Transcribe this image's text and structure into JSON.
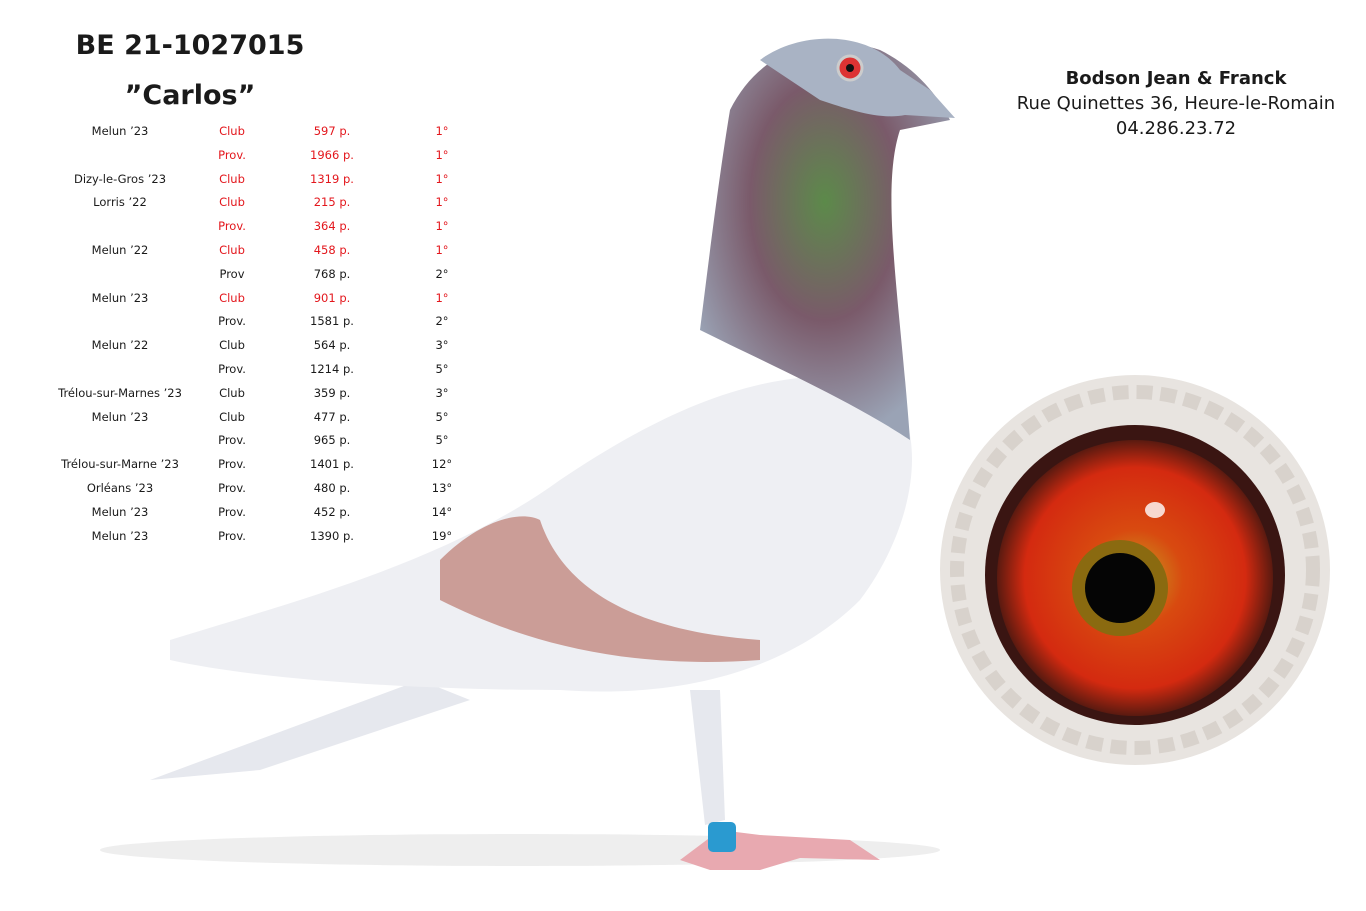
{
  "header": {
    "ring": "BE 21-1027015",
    "name": "”Carlos”"
  },
  "owner": {
    "name": "Bodson Jean & Franck",
    "address": "Rue Quinettes 36, Heure-le-Romain",
    "phone": "04.286.23.72"
  },
  "results": {
    "rows": [
      {
        "race": "Melun ’23",
        "level": "Club",
        "points": "597 p.",
        "place": "1°",
        "color": "#e3161c"
      },
      {
        "race": null,
        "level": "Prov.",
        "points": "1966 p.",
        "place": "1°",
        "color": "#e3161c"
      },
      {
        "race": "Dizy-le-Gros ’23",
        "level": "Club",
        "points": "1319 p.",
        "place": "1°",
        "color": "#e3161c"
      },
      {
        "race": "Lorris ’22",
        "level": "Club",
        "points": "215 p.",
        "place": "1°",
        "color": "#e3161c"
      },
      {
        "race": null,
        "level": "Prov.",
        "points": "364 p.",
        "place": "1°",
        "color": "#e3161c"
      },
      {
        "race": "Melun ’22",
        "level": "Club",
        "points": "458 p.",
        "place": "1°",
        "color": "#e3161c"
      },
      {
        "race": null,
        "level": "Prov",
        "points": "768 p.",
        "place": "2°",
        "color": "#1a1a1a"
      },
      {
        "race": "Melun ’23",
        "level": "Club",
        "points": "901 p.",
        "place": "1°",
        "color": "#e3161c"
      },
      {
        "race": null,
        "level": "Prov.",
        "points": "1581 p.",
        "place": "2°",
        "color": "#1a1a1a"
      },
      {
        "race": "Melun ’22",
        "level": "Club",
        "points": "564 p.",
        "place": "3°",
        "color": "#1a1a1a"
      },
      {
        "race": null,
        "level": "Prov.",
        "points": "1214 p.",
        "place": "5°",
        "color": "#1a1a1a"
      },
      {
        "race": "Trélou-sur-Marnes ’23",
        "level": "Club",
        "points": "359 p.",
        "place": "3°",
        "color": "#1a1a1a"
      },
      {
        "race": "Melun ’23",
        "level": "Club",
        "points": "477 p.",
        "place": "5°",
        "color": "#1a1a1a"
      },
      {
        "race": null,
        "level": "Prov.",
        "points": "965 p.",
        "place": "5°",
        "color": "#1a1a1a"
      },
      {
        "race": "Trélou-sur-Marne ’23",
        "level": "Prov.",
        "points": "1401 p.",
        "place": "12°",
        "color": "#1a1a1a"
      },
      {
        "race": "Orléans ’23",
        "level": "Prov.",
        "points": "480 p.",
        "place": "13°",
        "color": "#1a1a1a"
      },
      {
        "race": "Melun ’23",
        "level": "Prov.",
        "points": "452 p.",
        "place": "14°",
        "color": "#1a1a1a"
      },
      {
        "race": "Melun ’23",
        "level": "Prov.",
        "points": "1390 p.",
        "place": "19°",
        "color": "#1a1a1a"
      }
    ]
  }
}
